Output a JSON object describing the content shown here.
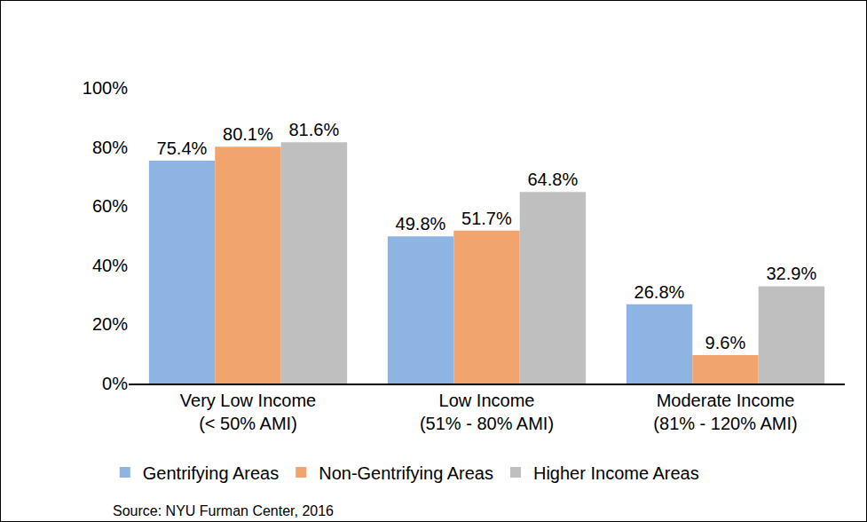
{
  "chart_data": {
    "type": "bar",
    "categories": [
      "Very Low Income\n(< 50% AMI)",
      "Low Income\n(51% - 80% AMI)",
      "Moderate Income\n(81% - 120% AMI)"
    ],
    "series": [
      {
        "name": "Gentrifying Areas",
        "color": "#8db4e2",
        "values": [
          75.4,
          49.8,
          26.8
        ],
        "value_labels": [
          "75.4%",
          "49.8%",
          "26.8%"
        ]
      },
      {
        "name": "Non-Gentrifying Areas",
        "color": "#f2a46e",
        "values": [
          80.1,
          51.7,
          9.6
        ],
        "value_labels": [
          "80.1%",
          "51.7%",
          "9.6%"
        ]
      },
      {
        "name": "Higher Income Areas",
        "color": "#bfbfbf",
        "values": [
          81.6,
          64.8,
          32.9
        ],
        "value_labels": [
          "81.6%",
          "64.8%",
          "32.9%"
        ]
      }
    ],
    "ylim": [
      0,
      100
    ],
    "yticks": [
      {
        "value": 0,
        "label": "0%"
      },
      {
        "value": 20,
        "label": "20%"
      },
      {
        "value": 40,
        "label": "40%"
      },
      {
        "value": 60,
        "label": "60%"
      },
      {
        "value": 80,
        "label": "80%"
      },
      {
        "value": 100,
        "label": "100%"
      }
    ],
    "grid": false,
    "legend": "bottom",
    "data_labels": true,
    "annotations": [
      "Source: NYU Furman Center, 2016"
    ]
  }
}
